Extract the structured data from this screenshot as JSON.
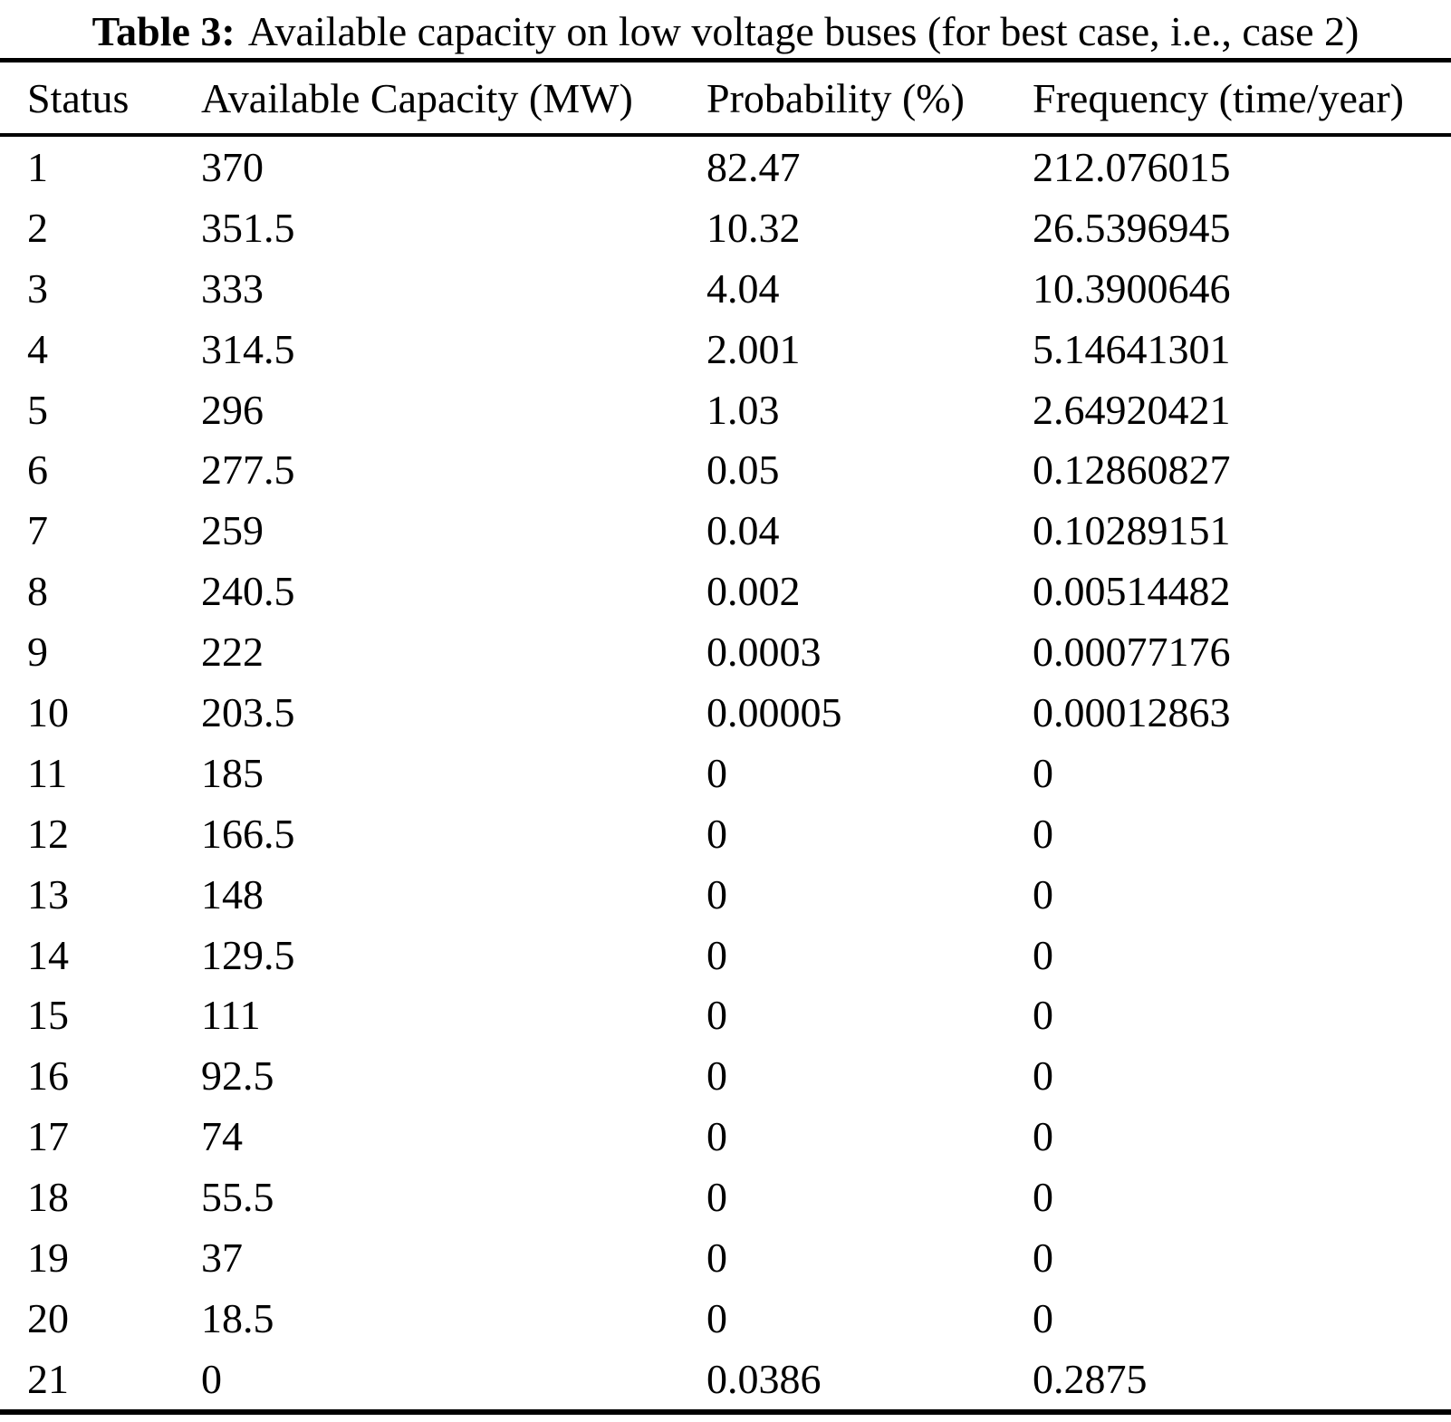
{
  "caption": {
    "label": "Table 3:",
    "text": "Available capacity on low voltage buses (for best case, i.e., case 2)"
  },
  "table": {
    "columns": [
      "Status",
      "Available Capacity (MW)",
      "Probability (%)",
      "Frequency (time/year)"
    ],
    "rows": [
      [
        "1",
        "370",
        "82.47",
        "212.076015"
      ],
      [
        "2",
        "351.5",
        "10.32",
        "26.5396945"
      ],
      [
        "3",
        "333",
        "4.04",
        "10.3900646"
      ],
      [
        "4",
        "314.5",
        "2.001",
        "5.14641301"
      ],
      [
        "5",
        "296",
        "1.03",
        "2.64920421"
      ],
      [
        "6",
        "277.5",
        "0.05",
        "0.12860827"
      ],
      [
        "7",
        "259",
        "0.04",
        "0.10289151"
      ],
      [
        "8",
        "240.5",
        "0.002",
        "0.00514482"
      ],
      [
        "9",
        "222",
        "0.0003",
        "0.00077176"
      ],
      [
        "10",
        "203.5",
        "0.00005",
        "0.00012863"
      ],
      [
        "11",
        "185",
        "0",
        "0"
      ],
      [
        "12",
        "166.5",
        "0",
        "0"
      ],
      [
        "13",
        "148",
        "0",
        "0"
      ],
      [
        "14",
        "129.5",
        "0",
        "0"
      ],
      [
        "15",
        "111",
        "0",
        "0"
      ],
      [
        "16",
        "92.5",
        "0",
        "0"
      ],
      [
        "17",
        "74",
        "0",
        "0"
      ],
      [
        "18",
        "55.5",
        "0",
        "0"
      ],
      [
        "19",
        "37",
        "0",
        "0"
      ],
      [
        "20",
        "18.5",
        "0",
        "0"
      ],
      [
        "21",
        "0",
        "0.0386",
        "0.2875"
      ]
    ]
  }
}
